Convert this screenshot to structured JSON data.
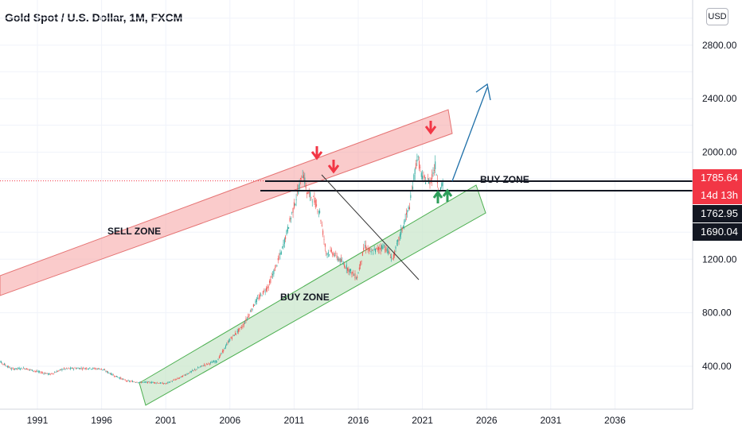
{
  "header": {
    "title": "Gold Spot / U.S. Dollar, 1M, FXCM",
    "currency_button": "USD"
  },
  "price_tags": [
    {
      "label": "1785.64",
      "color": "#f23645"
    },
    {
      "label": "14d 13h",
      "color": "#f23645"
    },
    {
      "label": "1762.95",
      "color": "#131722"
    },
    {
      "label": "1690.04",
      "color": "#131722"
    }
  ],
  "annotations": {
    "sell_zone": "SELL ZONE",
    "buy_zone_lower": "BUY ZONE",
    "buy_zone_upper": "BUY ZONE"
  },
  "colors": {
    "up": "#26a69a",
    "down": "#ef5350",
    "sell_band": "#f7a9a9",
    "buy_band": "#c8e6c9",
    "arrow_blue": "#1e6fa8",
    "arrow_red": "#f23645",
    "arrow_green": "#2e9e5b"
  },
  "chart_data": {
    "type": "line",
    "title": "Gold Spot / U.S. Dollar, 1M, FXCM",
    "x_ticks": [
      "1991",
      "1996",
      "2001",
      "2006",
      "2011",
      "2016",
      "2021",
      "2026",
      "2031",
      "2036"
    ],
    "y_ticks": [
      "2800.00",
      "2400.00",
      "2000.00",
      "1200.00",
      "800.00",
      "400.00"
    ],
    "ylim": [
      0,
      2950
    ],
    "xlim": [
      1987.5,
      2044.5
    ],
    "series": [
      {
        "values": [
          [
            1987.5,
            470
          ],
          [
            1988,
            440
          ],
          [
            1989,
            380
          ],
          [
            1990,
            385
          ],
          [
            1991,
            360
          ],
          [
            1992,
            340
          ],
          [
            1993,
            380
          ],
          [
            1994,
            385
          ],
          [
            1995,
            385
          ],
          [
            1996,
            380
          ],
          [
            1997,
            330
          ],
          [
            1998,
            290
          ],
          [
            1999,
            280
          ],
          [
            2000,
            280
          ],
          [
            2001,
            270
          ],
          [
            2002,
            310
          ],
          [
            2003,
            360
          ],
          [
            2004,
            410
          ],
          [
            2005,
            440
          ],
          [
            2006,
            600
          ],
          [
            2007,
            700
          ],
          [
            2008,
            880
          ],
          [
            2009,
            1000
          ],
          [
            2010,
            1250
          ],
          [
            2011,
            1600
          ],
          [
            2011.7,
            1850
          ],
          [
            2012,
            1700
          ],
          [
            2012.5,
            1650
          ],
          [
            2013,
            1550
          ],
          [
            2013.5,
            1250
          ],
          [
            2014,
            1250
          ],
          [
            2015,
            1150
          ],
          [
            2015.9,
            1060
          ],
          [
            2016.5,
            1300
          ],
          [
            2017,
            1250
          ],
          [
            2018,
            1300
          ],
          [
            2018.7,
            1200
          ],
          [
            2019,
            1300
          ],
          [
            2019.5,
            1450
          ],
          [
            2020,
            1600
          ],
          [
            2020.6,
            1970
          ],
          [
            2021,
            1800
          ],
          [
            2021.6,
            1780
          ],
          [
            2022,
            1900
          ],
          [
            2022.3,
            1700
          ],
          [
            2022.6,
            1762.95
          ]
        ]
      }
    ],
    "last_price": 1785.64
  }
}
